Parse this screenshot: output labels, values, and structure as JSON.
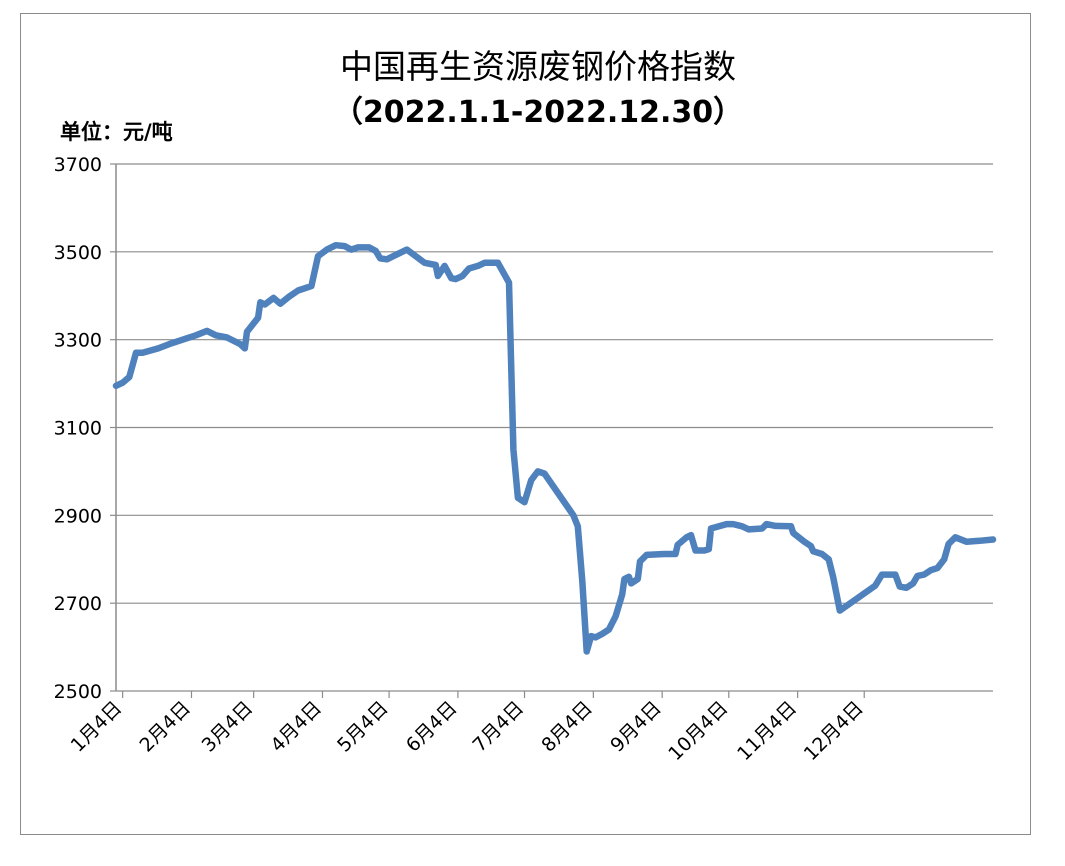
{
  "chart_data": {
    "type": "line",
    "title": "中国再生资源废钢价格指数",
    "subtitle": "（2022.1.1-2022.12.30）",
    "unit_label": "单位：元/吨",
    "xlabel": "",
    "ylabel": "",
    "ylim": [
      2500,
      3700
    ],
    "yticks": [
      "3700",
      "3500",
      "3300",
      "3100",
      "2900",
      "2700",
      "2500"
    ],
    "xticks": [
      "1月4日",
      "2月4日",
      "3月4日",
      "4月4日",
      "5月4日",
      "6月4日",
      "7月4日",
      "8月4日",
      "9月4日",
      "10月4日",
      "11月4日",
      "12月4日"
    ],
    "xtick_dates": [
      "2022-01-04",
      "2022-02-04",
      "2022-03-04",
      "2022-04-04",
      "2022-05-04",
      "2022-06-04",
      "2022-07-04",
      "2022-08-04",
      "2022-09-04",
      "2022-10-04",
      "2022-11-04",
      "2022-12-04"
    ],
    "grid": "horizontal",
    "legend": "none",
    "line_color": "#4f81bd",
    "series": [
      {
        "values": [
          [
            "2022-01-01",
            3195
          ],
          [
            "2022-01-04",
            3202
          ],
          [
            "2022-01-07",
            3215
          ],
          [
            "2022-01-10",
            3270
          ],
          [
            "2022-01-13",
            3270
          ],
          [
            "2022-01-20",
            3280
          ],
          [
            "2022-01-25",
            3290
          ],
          [
            "2022-02-06",
            3310
          ],
          [
            "2022-02-11",
            3320
          ],
          [
            "2022-02-15",
            3310
          ],
          [
            "2022-02-20",
            3305
          ],
          [
            "2022-02-26",
            3290
          ],
          [
            "2022-02-28",
            3280
          ],
          [
            "2022-03-01",
            3318
          ],
          [
            "2022-03-06",
            3350
          ],
          [
            "2022-03-07",
            3385
          ],
          [
            "2022-03-09",
            3380
          ],
          [
            "2022-03-13",
            3395
          ],
          [
            "2022-03-16",
            3382
          ],
          [
            "2022-03-20",
            3398
          ],
          [
            "2022-03-24",
            3412
          ],
          [
            "2022-03-30",
            3422
          ],
          [
            "2022-04-02",
            3490
          ],
          [
            "2022-04-06",
            3505
          ],
          [
            "2022-04-10",
            3515
          ],
          [
            "2022-04-14",
            3513
          ],
          [
            "2022-04-17",
            3505
          ],
          [
            "2022-04-20",
            3510
          ],
          [
            "2022-04-25",
            3510
          ],
          [
            "2022-04-28",
            3502
          ],
          [
            "2022-04-30",
            3485
          ],
          [
            "2022-05-03",
            3483
          ],
          [
            "2022-05-07",
            3493
          ],
          [
            "2022-05-12",
            3505
          ],
          [
            "2022-05-16",
            3490
          ],
          [
            "2022-05-20",
            3475
          ],
          [
            "2022-05-25",
            3470
          ],
          [
            "2022-05-26",
            3445
          ],
          [
            "2022-05-29",
            3468
          ],
          [
            "2022-06-01",
            3440
          ],
          [
            "2022-06-03",
            3438
          ],
          [
            "2022-06-06",
            3445
          ],
          [
            "2022-06-09",
            3462
          ],
          [
            "2022-06-13",
            3468
          ],
          [
            "2022-06-16",
            3475
          ],
          [
            "2022-06-22",
            3475
          ],
          [
            "2022-06-27",
            3430
          ],
          [
            "2022-06-29",
            3050
          ],
          [
            "2022-07-01",
            2940
          ],
          [
            "2022-07-04",
            2930
          ],
          [
            "2022-07-07",
            2980
          ],
          [
            "2022-07-10",
            3000
          ],
          [
            "2022-07-13",
            2995
          ],
          [
            "2022-07-26",
            2900
          ],
          [
            "2022-07-28",
            2875
          ],
          [
            "2022-07-30",
            2750
          ],
          [
            "2022-08-01",
            2590
          ],
          [
            "2022-08-03",
            2625
          ],
          [
            "2022-08-05",
            2622
          ],
          [
            "2022-08-08",
            2630
          ],
          [
            "2022-08-11",
            2640
          ],
          [
            "2022-08-14",
            2670
          ],
          [
            "2022-08-17",
            2720
          ],
          [
            "2022-08-18",
            2755
          ],
          [
            "2022-08-20",
            2760
          ],
          [
            "2022-08-21",
            2745
          ],
          [
            "2022-08-24",
            2755
          ],
          [
            "2022-08-25",
            2795
          ],
          [
            "2022-08-28",
            2810
          ],
          [
            "2022-09-05",
            2812
          ],
          [
            "2022-09-10",
            2812
          ],
          [
            "2022-09-11",
            2833
          ],
          [
            "2022-09-15",
            2850
          ],
          [
            "2022-09-17",
            2855
          ],
          [
            "2022-09-19",
            2820
          ],
          [
            "2022-09-23",
            2820
          ],
          [
            "2022-09-25",
            2823
          ],
          [
            "2022-09-26",
            2870
          ],
          [
            "2022-10-03",
            2880
          ],
          [
            "2022-10-06",
            2880
          ],
          [
            "2022-10-10",
            2875
          ],
          [
            "2022-10-13",
            2868
          ],
          [
            "2022-10-19",
            2870
          ],
          [
            "2022-10-21",
            2880
          ],
          [
            "2022-10-25",
            2876
          ],
          [
            "2022-11-01",
            2875
          ],
          [
            "2022-11-02",
            2860
          ],
          [
            "2022-11-07",
            2840
          ],
          [
            "2022-11-10",
            2830
          ],
          [
            "2022-11-11",
            2818
          ],
          [
            "2022-11-15",
            2812
          ],
          [
            "2022-11-18",
            2800
          ],
          [
            "2022-11-20",
            2760
          ],
          [
            "2022-11-23",
            2683
          ],
          [
            "2022-12-09",
            2740
          ],
          [
            "2022-12-12",
            2765
          ],
          [
            "2022-12-18",
            2765
          ],
          [
            "2022-12-20",
            2738
          ],
          [
            "2022-12-23",
            2735
          ],
          [
            "2022-12-26",
            2745
          ],
          [
            "2022-12-28",
            2762
          ],
          [
            "2022-12-31",
            2765
          ],
          [
            "2023-01-03",
            2775
          ],
          [
            "2023-01-06",
            2780
          ],
          [
            "2023-01-09",
            2800
          ],
          [
            "2023-01-11",
            2835
          ],
          [
            "2023-01-14",
            2850
          ],
          [
            "2023-01-19",
            2840
          ],
          [
            "2023-01-25",
            2842
          ],
          [
            "2023-01-31",
            2845
          ]
        ]
      }
    ]
  }
}
